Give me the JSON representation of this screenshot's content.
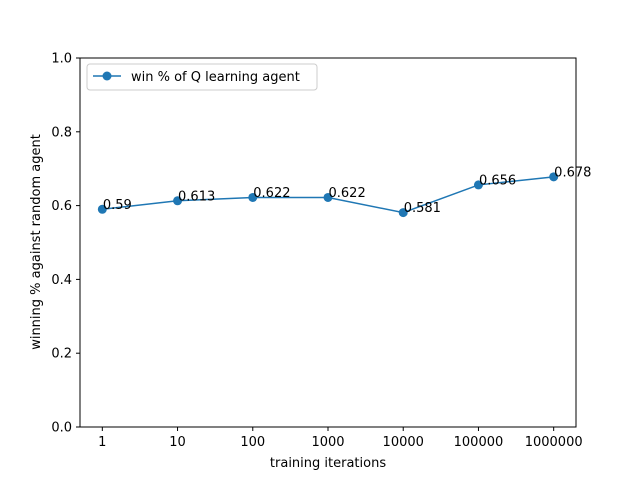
{
  "chart_data": {
    "type": "line",
    "title": "",
    "xlabel": "training iterations",
    "ylabel": "winning % against random agent",
    "categories": [
      "1",
      "10",
      "100",
      "1000",
      "10000",
      "100000",
      "1000000"
    ],
    "series": [
      {
        "name": "win % of Q learning agent",
        "values": [
          0.59,
          0.613,
          0.622,
          0.622,
          0.581,
          0.656,
          0.678
        ],
        "data_labels": [
          "0.59",
          "0.613",
          "0.622",
          "0.622",
          "0.581",
          "0.656",
          "0.678"
        ],
        "color": "#1f77b4",
        "marker": "circle"
      }
    ],
    "ylim": [
      0.0,
      1.0
    ],
    "yticks": [
      "0.0",
      "0.2",
      "0.4",
      "0.6",
      "0.8",
      "1.0"
    ],
    "ytick_values": [
      0.0,
      0.2,
      0.4,
      0.6,
      0.8,
      1.0
    ],
    "grid": false,
    "legend_position": "top-left"
  }
}
